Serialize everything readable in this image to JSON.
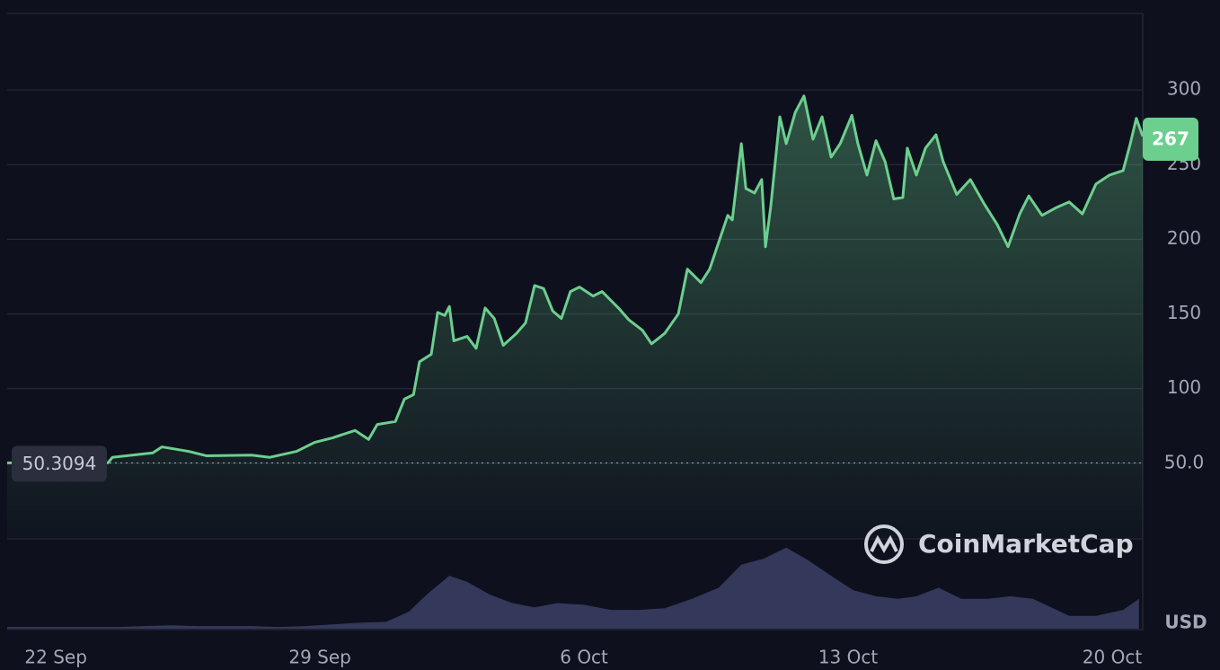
{
  "chart_data": {
    "type": "area",
    "series": [
      {
        "name": "Price",
        "color": "#6ccf8e",
        "x": [
          -1.29,
          1.38,
          1.5,
          2.57,
          2.81,
          3.52,
          4,
          5.19,
          5.67,
          6.38,
          6.86,
          7.33,
          7.93,
          8.29,
          8.52,
          9,
          9.24,
          9.48,
          9.64,
          9.95,
          10.12,
          10.31,
          10.43,
          10.55,
          10.9,
          11.14,
          11.38,
          11.62,
          11.86,
          12.21,
          12.45,
          12.69,
          12.93,
          13.17,
          13.4,
          13.64,
          13.88,
          14.24,
          14.48,
          14.95,
          15.19,
          15.55,
          15.79,
          16.14,
          16.5,
          16.74,
          17.1,
          17.33,
          17.57,
          17.81,
          17.93,
          18.17,
          18.29,
          18.52,
          18.71,
          18.81,
          18.95,
          19.19,
          19.36,
          19.6,
          19.83,
          20.07,
          20.31,
          20.55,
          20.79,
          21.1,
          21.26,
          21.5,
          21.74,
          21.98,
          22.21,
          22.45,
          22.57,
          22.81,
          23.05,
          23.33,
          23.52,
          23.88,
          24.24,
          24.6,
          24.95,
          25.24,
          25.55,
          25.79,
          26.14,
          26.5,
          26.86,
          27.21,
          27.57,
          27.93,
          28.29,
          28.48,
          28.64,
          28.81
        ],
        "values": [
          50.3,
          50.3,
          54,
          57,
          61,
          58,
          55,
          55.5,
          54,
          58,
          64,
          67,
          72,
          66,
          76,
          78,
          93,
          96,
          118,
          123,
          151,
          149,
          155,
          132,
          135,
          127,
          154,
          147,
          129,
          137,
          144,
          169,
          167,
          152,
          147,
          165,
          168,
          162,
          165,
          153,
          146,
          139,
          130,
          137,
          150,
          180,
          171,
          180,
          198,
          216,
          213,
          264,
          234,
          231,
          240,
          195,
          222,
          282,
          264,
          285,
          296,
          267,
          282,
          255,
          264,
          283,
          264,
          243,
          266,
          252,
          227,
          228,
          261,
          243,
          261,
          270,
          252,
          230,
          240,
          224,
          210,
          195,
          217,
          229,
          216,
          221,
          225,
          217,
          237,
          243,
          246,
          264,
          281,
          269
        ]
      }
    ],
    "volume": {
      "color": "#3b3f66",
      "x": [
        -1.29,
        -0.52,
        0.19,
        0.9,
        1.62,
        2.33,
        3.05,
        3.76,
        4.48,
        5.19,
        5.9,
        6.62,
        7.33,
        8.05,
        8.76,
        9.36,
        9.83,
        10.43,
        10.9,
        11.5,
        12.1,
        12.69,
        13.29,
        14,
        14.71,
        15.43,
        16.14,
        16.86,
        17.57,
        18.17,
        18.76,
        19.36,
        19.95,
        20.55,
        21.14,
        21.74,
        22.33,
        22.81,
        23.4,
        24,
        24.71,
        25.31,
        25.9,
        26.38,
        26.86,
        27.57,
        28.29,
        28.71
      ],
      "values": [
        2,
        2,
        2,
        2,
        2,
        3,
        4,
        3,
        3,
        3,
        2,
        3,
        5,
        7,
        8,
        20,
        40,
        62,
        55,
        40,
        30,
        25,
        30,
        28,
        22,
        22,
        24,
        35,
        48,
        75,
        82,
        95,
        80,
        62,
        45,
        38,
        35,
        38,
        48,
        35,
        35,
        38,
        35,
        25,
        15,
        15,
        22,
        35
      ],
      "vlim": [
        0,
        100
      ]
    },
    "xlim": [
      -1.29,
      28.81
    ],
    "xticks": [
      {
        "value": 0,
        "label": "22 Sep"
      },
      {
        "value": 7,
        "label": "29 Sep"
      },
      {
        "value": 14,
        "label": "6 Oct"
      },
      {
        "value": 21,
        "label": "13 Oct"
      },
      {
        "value": 28,
        "label": "20 Oct"
      }
    ],
    "ylim": [
      0,
      350
    ],
    "yticks": [
      {
        "value": 50,
        "label": "50.0"
      },
      100,
      150,
      200,
      250,
      300
    ],
    "grid": true,
    "start_value": {
      "value": 50.3094,
      "label": "50.3094"
    },
    "current_value": 267,
    "currency": "USD",
    "brand": "CoinMarketCap"
  }
}
